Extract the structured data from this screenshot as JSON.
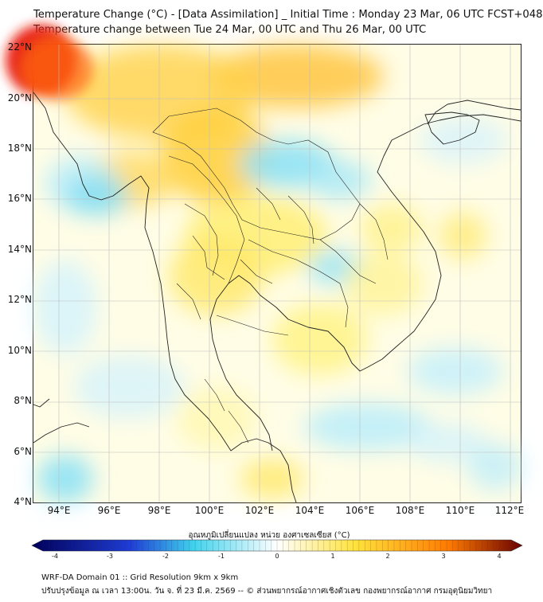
{
  "title_line1": "Temperature Change (°C) - [Data Assimilation] _ Initial Time : Monday 23 Mar, 06 UTC FCST+048",
  "title_line2": "Temperature change between Tue 24 Mar, 00 UTC and Thu 26 Mar, 00 UTC",
  "lat_labels": [
    "22°N",
    "20°N",
    "18°N",
    "16°N",
    "14°N",
    "12°N",
    "10°N",
    "8°N",
    "6°N",
    "4°N"
  ],
  "lon_labels": [
    "94°E",
    "96°E",
    "98°E",
    "100°E",
    "102°E",
    "104°E",
    "106°E",
    "108°E",
    "110°E",
    "112°E"
  ],
  "colorbar": {
    "title": "อุณหภูมิเปลี่ยนแปลง หน่วย องศาเซลเซียส (°C)",
    "ticks": [
      "-4",
      "-3",
      "-2",
      "-1",
      "0",
      "1",
      "2",
      "3",
      "4"
    ],
    "range": [
      -4,
      4
    ],
    "colors": {
      "min": "#00005a",
      "cold": "#1f3cd6",
      "cool": "#3fd3ee",
      "neutral": "#ffffff",
      "warm": "#ffe23a",
      "hot": "#ff7a00",
      "max": "#6a0000"
    }
  },
  "footer_line1": "WRF-DA Domain 01 :: Grid Resolution 9km x 9km",
  "footer_line2": "ปรับปรุงข้อมูล ณ เวลา 13:00น. วัน จ. ที่ 23 มี.ค. 2569 -- © ส่วนพยากรณ์อากาศเชิงตัวเลข กองพยากรณ์อากาศ กรมอุตุนิยมวิทยา"
}
